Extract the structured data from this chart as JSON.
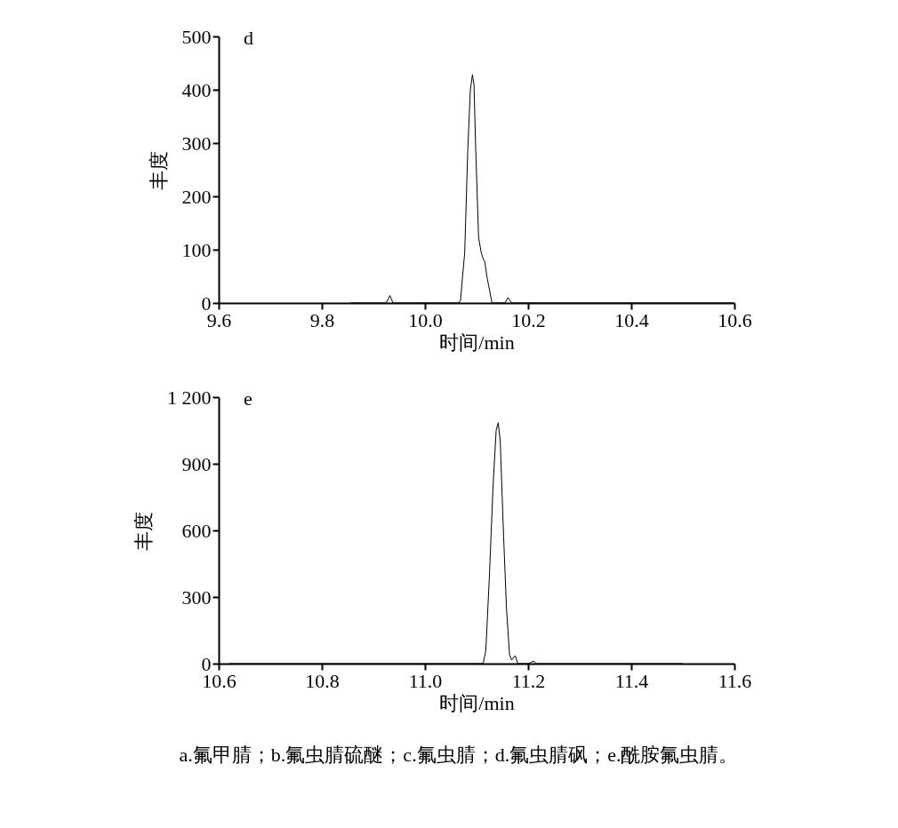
{
  "chart_data": [
    {
      "type": "line",
      "xlabel": "时间/min",
      "ylabel": "丰度",
      "annotations": [
        "d"
      ],
      "xlim": [
        9.6,
        10.6
      ],
      "xticks": [
        9.6,
        9.8,
        {
          "value": 10,
          "label": "10.0"
        },
        10.2,
        10.4,
        10.6
      ],
      "ylim": [
        0,
        500
      ],
      "yticks": [
        0,
        100,
        200,
        300,
        400,
        500
      ],
      "grid": false,
      "marker": "none",
      "line_style": "solid",
      "series": [
        {
          "color": "#000000",
          "x": [
            9.855,
            9.925,
            9.932,
            9.938,
            10.065,
            10.069,
            10.072,
            10.077,
            10.083,
            10.088,
            10.092,
            10.095,
            10.098,
            10.104,
            10.109,
            10.112,
            10.116,
            10.12,
            10.13,
            10.155,
            10.161,
            10.168,
            10.6
          ],
          "values": [
            0,
            0,
            14,
            0,
            0,
            5,
            40,
            94,
            288,
            400,
            428,
            410,
            300,
            122,
            95,
            85,
            77,
            50,
            0,
            0,
            10,
            0,
            0
          ]
        }
      ]
    },
    {
      "type": "line",
      "xlabel": "时间/min",
      "ylabel": "丰度",
      "annotations": [
        "e",
        "a.氟甲腈；b.氟虫腈硫醚；c.氟虫腈；d.氟虫腈砜；e.酰胺氟虫腈。"
      ],
      "xlim": [
        10.6,
        11.6
      ],
      "xticks": [
        10.6,
        10.8,
        {
          "value": 11,
          "label": "11.0"
        },
        11.2,
        11.4,
        11.6
      ],
      "ylim": [
        0,
        1200
      ],
      "yticks": [
        0,
        300,
        600,
        900,
        {
          "value": 1200,
          "label": "1 200"
        }
      ],
      "grid": false,
      "marker": "none",
      "line_style": "solid",
      "series": [
        {
          "color": "#000000",
          "x": [
            10.62,
            11.11,
            11.113,
            11.118,
            11.125,
            11.132,
            11.138,
            11.142,
            11.146,
            11.152,
            11.158,
            11.161,
            11.164,
            11.168,
            11.175,
            11.18,
            11.2,
            11.211,
            11.215,
            11.5
          ],
          "values": [
            0,
            0,
            3,
            60,
            400,
            800,
            1050,
            1085,
            1000,
            600,
            250,
            145,
            40,
            16,
            36,
            0,
            0,
            12,
            0,
            0
          ]
        }
      ]
    }
  ]
}
